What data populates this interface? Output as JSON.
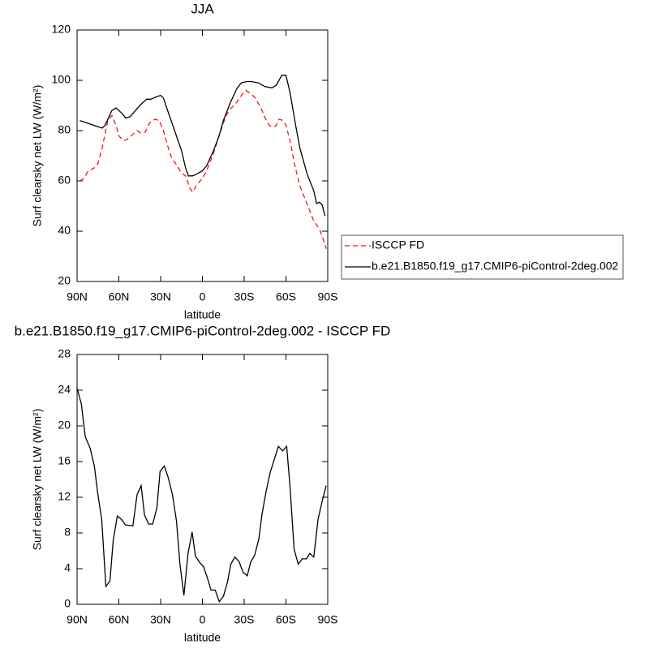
{
  "chart_data": [
    {
      "type": "line",
      "title": "JJA",
      "xlabel": "latitude",
      "ylabel": "Surf clearsky net LW (W/m²)",
      "xlim": [
        90,
        -90
      ],
      "xticks": [
        {
          "value": 90,
          "label": "90N"
        },
        {
          "value": 60,
          "label": "60N"
        },
        {
          "value": 30,
          "label": "30N"
        },
        0,
        {
          "value": -30,
          "label": "30S"
        },
        {
          "value": -60,
          "label": "60S"
        },
        {
          "value": -90,
          "label": "90S"
        }
      ],
      "ylim": [
        20,
        120
      ],
      "yticks": [
        20,
        40,
        60,
        80,
        100,
        120
      ],
      "legend": "right",
      "series": [
        {
          "name": "ISCCP FD",
          "color": "#e41a1c",
          "style": "dashed",
          "x": [
            88,
            85,
            82,
            78,
            75,
            72,
            68,
            65,
            62,
            60,
            57,
            54,
            50,
            47,
            44,
            41,
            38,
            34,
            31,
            28,
            25,
            22,
            18,
            15,
            12,
            9,
            7,
            4,
            0,
            -3,
            -8,
            -12,
            -17,
            -20,
            -25,
            -28,
            -31,
            -34,
            -38,
            -42,
            -45,
            -48,
            -51,
            -53,
            -55,
            -58,
            -60,
            -63,
            -66,
            -70,
            -75,
            -80,
            -84,
            -86,
            -89
          ],
          "values": [
            60,
            61,
            64,
            65,
            67,
            73,
            84,
            86,
            82,
            78,
            76,
            76.5,
            78.5,
            80,
            79,
            79.5,
            83,
            84.5,
            84,
            80,
            74,
            69,
            66,
            63,
            62,
            57,
            55.5,
            58.5,
            61,
            64,
            71,
            78,
            86,
            88.5,
            91.5,
            94,
            96,
            95,
            93,
            89,
            85,
            82,
            81.5,
            82,
            84.5,
            84,
            82,
            76,
            67,
            58,
            51,
            44,
            41,
            38,
            33
          ]
        },
        {
          "name": "b.e21.B1850.f19_g17.CMIP6-piControl-2deg.002",
          "color": "#000000",
          "style": "solid",
          "x": [
            88,
            80,
            75,
            72,
            70,
            65,
            62,
            58,
            55,
            52,
            48,
            45,
            40,
            37,
            33,
            30,
            28,
            25,
            20,
            15,
            12,
            10,
            7,
            5,
            0,
            -3,
            -8,
            -12,
            -15,
            -20,
            -25,
            -28,
            -32,
            -35,
            -40,
            -45,
            -50,
            -53,
            -57,
            -60,
            -63,
            -67,
            -70,
            -75,
            -80,
            -82,
            -84,
            -86,
            -88
          ],
          "values": [
            84,
            82.5,
            81.5,
            81,
            82,
            88,
            89,
            87,
            85,
            85.5,
            88,
            90,
            92.5,
            92.5,
            93.5,
            94,
            93,
            88,
            80,
            72,
            65,
            62,
            62,
            62.5,
            64,
            66,
            72,
            78,
            84,
            91,
            97,
            99,
            99.5,
            99.5,
            99,
            97.5,
            97,
            98,
            102,
            102,
            95,
            82,
            73,
            63,
            56,
            51,
            51.5,
            50.5,
            46
          ]
        }
      ]
    },
    {
      "type": "line",
      "title": "b.e21.B1850.f19_g17.CMIP6-piControl-2deg.002 - ISCCP FD",
      "xlabel": "latitude",
      "ylabel": "Surf clearsky net LW (W/m²)",
      "xlim": [
        90,
        -90
      ],
      "xticks": [
        {
          "value": 90,
          "label": "90N"
        },
        {
          "value": 60,
          "label": "60N"
        },
        {
          "value": 30,
          "label": "30N"
        },
        0,
        {
          "value": -30,
          "label": "30S"
        },
        {
          "value": -60,
          "label": "60S"
        },
        {
          "value": -90,
          "label": "90S"
        }
      ],
      "ylim": [
        0,
        28
      ],
      "yticks": [
        0,
        4,
        8,
        12,
        16,
        20,
        24,
        28
      ],
      "series": [
        {
          "color": "#000000",
          "style": "solid",
          "x": [
            90,
            87,
            84.1,
            80.6,
            77.6,
            75.2,
            72.3,
            69.3,
            66.4,
            64,
            61.1,
            58.1,
            55.2,
            49.9,
            46.9,
            44,
            41.6,
            38.6,
            35.7,
            32.7,
            30.4,
            27.4,
            24.5,
            21.5,
            18.6,
            16.2,
            13.3,
            10.3,
            7.4,
            5,
            2,
            -0.9,
            -3.9,
            -6.2,
            -9.2,
            -12.1,
            -15.1,
            -18,
            -20.4,
            -23.3,
            -26.3,
            -29.2,
            -32.2,
            -34.6,
            -37.5,
            -40.5,
            -42.8,
            -45.8,
            -48.7,
            -51.7,
            -54.6,
            -57.6,
            -60.5,
            -62.9,
            -65.8,
            -68.8,
            -71.7,
            -74.7,
            -77.1,
            -80,
            -83,
            -85.9,
            -88.9
          ],
          "values": [
            24.2,
            22.5,
            18.8,
            17.5,
            15.5,
            12.5,
            9.5,
            2,
            2.6,
            7.2,
            9.9,
            9.5,
            8.9,
            8.8,
            12.3,
            13.3,
            10,
            9,
            9,
            10.8,
            14.9,
            15.5,
            14.2,
            12.3,
            9.3,
            4.6,
            1,
            5.7,
            8.1,
            5.4,
            4.7,
            4.2,
            2.8,
            1.6,
            1.6,
            0.3,
            0.9,
            2.5,
            4.5,
            5.3,
            4.8,
            3.6,
            3.2,
            4.7,
            5.5,
            7.3,
            10.1,
            12.7,
            14.8,
            16.3,
            17.7,
            17.2,
            17.7,
            13.2,
            6.2,
            4.5,
            5.1,
            5.1,
            5.7,
            5.3,
            9.5,
            11.5,
            13.3
          ]
        }
      ]
    }
  ]
}
